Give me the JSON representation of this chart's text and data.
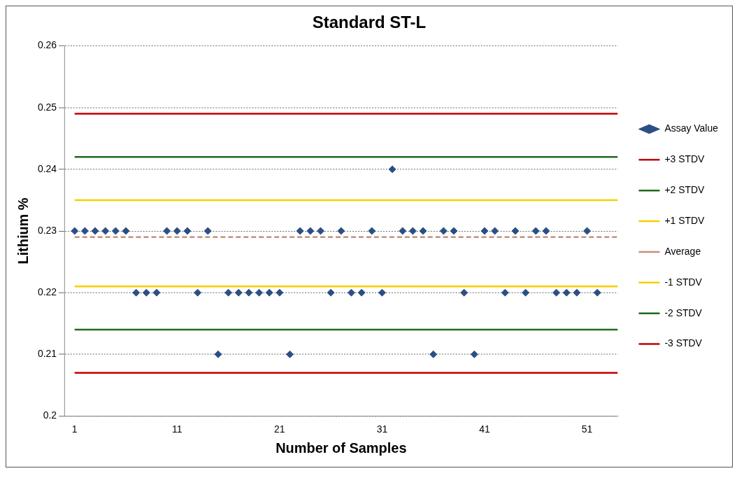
{
  "chart_data": {
    "type": "scatter",
    "title": "Standard ST-L",
    "xlabel": "Number of Samples",
    "ylabel": "Lithium %",
    "xlim": [
      0,
      54
    ],
    "xticks": [
      1,
      11,
      21,
      31,
      41,
      51
    ],
    "ylim": [
      0.2,
      0.26
    ],
    "yticks": [
      0.2,
      0.21,
      0.22,
      0.23,
      0.24,
      0.25,
      0.26
    ],
    "grid": "y",
    "legend": "right",
    "series": [
      {
        "name": "Assay Value",
        "type": "scatter",
        "marker": "diamond",
        "color": "#2b4f85",
        "x": [
          1,
          2,
          3,
          4,
          5,
          6,
          7,
          8,
          9,
          10,
          11,
          12,
          13,
          14,
          15,
          16,
          17,
          18,
          19,
          20,
          21,
          22,
          23,
          24,
          25,
          26,
          27,
          28,
          29,
          30,
          31,
          32,
          33,
          34,
          35,
          36,
          37,
          38,
          39,
          40,
          41,
          42,
          43,
          44,
          45,
          46,
          47,
          48,
          49,
          50,
          51,
          52
        ],
        "values": [
          0.23,
          0.23,
          0.23,
          0.23,
          0.23,
          0.23,
          0.22,
          0.22,
          0.22,
          0.23,
          0.23,
          0.23,
          0.22,
          0.23,
          0.21,
          0.22,
          0.22,
          0.22,
          0.22,
          0.22,
          0.22,
          0.21,
          0.23,
          0.23,
          0.23,
          0.22,
          0.23,
          0.22,
          0.22,
          0.23,
          0.22,
          0.24,
          0.23,
          0.23,
          0.23,
          0.21,
          0.23,
          0.23,
          0.22,
          0.21,
          0.23,
          0.23,
          0.22,
          0.23,
          0.22,
          0.23,
          0.23,
          0.22,
          0.22,
          0.22,
          0.23,
          0.22
        ]
      },
      {
        "name": "+3 STDV",
        "type": "line",
        "marker": "none",
        "line_style": "solid",
        "color": "#c00000",
        "x": [
          1,
          54
        ],
        "values": [
          0.249,
          0.249
        ]
      },
      {
        "name": "+2 STDV",
        "type": "line",
        "marker": "none",
        "line_style": "solid",
        "color": "#1e6b1e",
        "x": [
          1,
          54
        ],
        "values": [
          0.242,
          0.242
        ]
      },
      {
        "name": "+1 STDV",
        "type": "line",
        "marker": "none",
        "line_style": "solid",
        "color": "#f5d000",
        "x": [
          1,
          54
        ],
        "values": [
          0.235,
          0.235
        ]
      },
      {
        "name": "Average",
        "type": "line",
        "marker": "none",
        "line_style": "dashed",
        "color": "#c4907c",
        "x": [
          1,
          54
        ],
        "values": [
          0.229,
          0.229
        ]
      },
      {
        "name": "-1 STDV",
        "type": "line",
        "marker": "none",
        "line_style": "solid",
        "color": "#f5d000",
        "x": [
          1,
          54
        ],
        "values": [
          0.221,
          0.221
        ]
      },
      {
        "name": "-2 STDV",
        "type": "line",
        "marker": "none",
        "line_style": "solid",
        "color": "#1e6b1e",
        "x": [
          1,
          54
        ],
        "values": [
          0.214,
          0.214
        ]
      },
      {
        "name": "-3 STDV",
        "type": "line",
        "marker": "none",
        "line_style": "solid",
        "color": "#c00000",
        "x": [
          1,
          54
        ],
        "values": [
          0.207,
          0.207
        ]
      }
    ]
  }
}
